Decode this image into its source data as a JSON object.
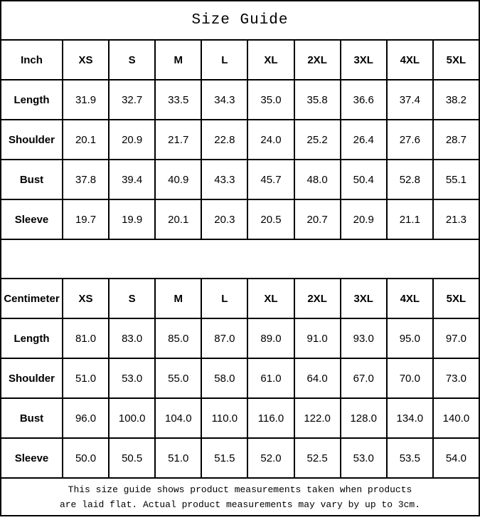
{
  "title": "Size Guide",
  "colors": {
    "border": "#000000",
    "background": "#ffffff",
    "text": "#000000"
  },
  "tables": [
    {
      "unit_label": "Inch",
      "size_headers": [
        "XS",
        "S",
        "M",
        "L",
        "XL",
        "2XL",
        "3XL",
        "4XL",
        "5XL"
      ],
      "rows": [
        {
          "label": "Length",
          "values": [
            "31.9",
            "32.7",
            "33.5",
            "34.3",
            "35.0",
            "35.8",
            "36.6",
            "37.4",
            "38.2"
          ]
        },
        {
          "label": "Shoulder",
          "values": [
            "20.1",
            "20.9",
            "21.7",
            "22.8",
            "24.0",
            "25.2",
            "26.4",
            "27.6",
            "28.7"
          ]
        },
        {
          "label": "Bust",
          "values": [
            "37.8",
            "39.4",
            "40.9",
            "43.3",
            "45.7",
            "48.0",
            "50.4",
            "52.8",
            "55.1"
          ]
        },
        {
          "label": "Sleeve",
          "values": [
            "19.7",
            "19.9",
            "20.1",
            "20.3",
            "20.5",
            "20.7",
            "20.9",
            "21.1",
            "21.3"
          ]
        }
      ]
    },
    {
      "unit_label": "Centimeter",
      "size_headers": [
        "XS",
        "S",
        "M",
        "L",
        "XL",
        "2XL",
        "3XL",
        "4XL",
        "5XL"
      ],
      "rows": [
        {
          "label": "Length",
          "values": [
            "81.0",
            "83.0",
            "85.0",
            "87.0",
            "89.0",
            "91.0",
            "93.0",
            "95.0",
            "97.0"
          ]
        },
        {
          "label": "Shoulder",
          "values": [
            "51.0",
            "53.0",
            "55.0",
            "58.0",
            "61.0",
            "64.0",
            "67.0",
            "70.0",
            "73.0"
          ]
        },
        {
          "label": "Bust",
          "values": [
            "96.0",
            "100.0",
            "104.0",
            "110.0",
            "116.0",
            "122.0",
            "128.0",
            "134.0",
            "140.0"
          ]
        },
        {
          "label": "Sleeve",
          "values": [
            "50.0",
            "50.5",
            "51.0",
            "51.5",
            "52.0",
            "52.5",
            "53.0",
            "53.5",
            "54.0"
          ]
        }
      ]
    }
  ],
  "footer": {
    "line1": "This size guide shows product measurements taken when products",
    "line2": "are laid flat. Actual product measurements may vary by up to 3cm."
  },
  "chart_data": [
    {
      "type": "table",
      "title": "Size Guide",
      "unit": "Inch",
      "columns": [
        "Inch",
        "XS",
        "S",
        "M",
        "L",
        "XL",
        "2XL",
        "3XL",
        "4XL",
        "5XL"
      ],
      "rows": [
        [
          "Length",
          31.9,
          32.7,
          33.5,
          34.3,
          35.0,
          35.8,
          36.6,
          37.4,
          38.2
        ],
        [
          "Shoulder",
          20.1,
          20.9,
          21.7,
          22.8,
          24.0,
          25.2,
          26.4,
          27.6,
          28.7
        ],
        [
          "Bust",
          37.8,
          39.4,
          40.9,
          43.3,
          45.7,
          48.0,
          50.4,
          52.8,
          55.1
        ],
        [
          "Sleeve",
          19.7,
          19.9,
          20.1,
          20.3,
          20.5,
          20.7,
          20.9,
          21.1,
          21.3
        ]
      ]
    },
    {
      "type": "table",
      "title": "Size Guide",
      "unit": "Centimeter",
      "columns": [
        "Centimeter",
        "XS",
        "S",
        "M",
        "L",
        "XL",
        "2XL",
        "3XL",
        "4XL",
        "5XL"
      ],
      "rows": [
        [
          "Length",
          81.0,
          83.0,
          85.0,
          87.0,
          89.0,
          91.0,
          93.0,
          95.0,
          97.0
        ],
        [
          "Shoulder",
          51.0,
          53.0,
          55.0,
          58.0,
          61.0,
          64.0,
          67.0,
          70.0,
          73.0
        ],
        [
          "Bust",
          96.0,
          100.0,
          104.0,
          110.0,
          116.0,
          122.0,
          128.0,
          134.0,
          140.0
        ],
        [
          "Sleeve",
          50.0,
          50.5,
          51.0,
          51.5,
          52.0,
          52.5,
          53.0,
          53.5,
          54.0
        ]
      ]
    }
  ]
}
